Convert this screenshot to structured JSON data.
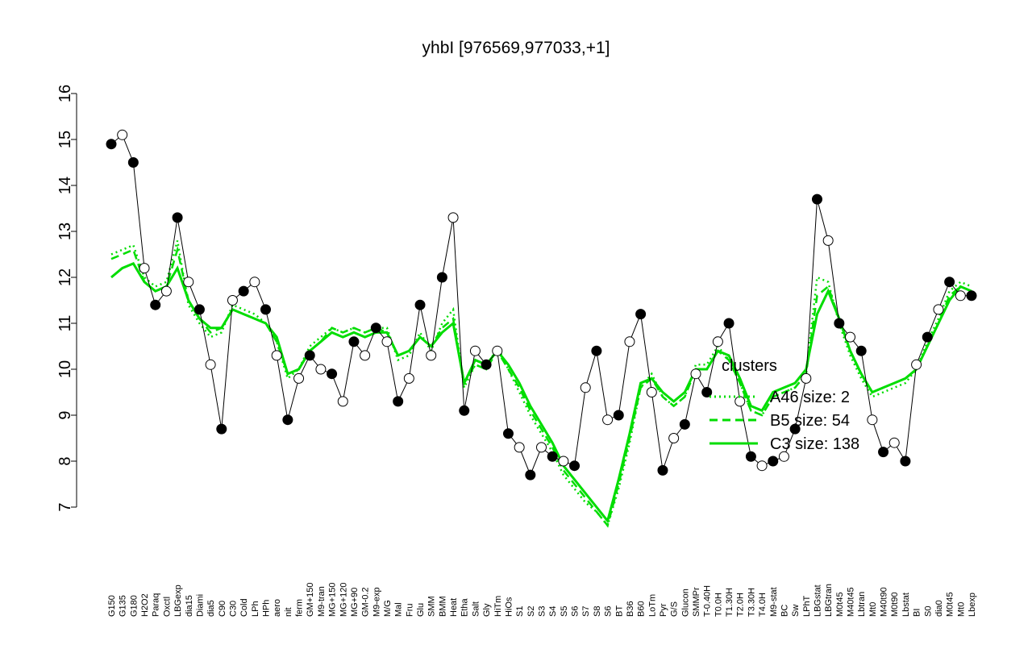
{
  "chart_data": {
    "type": "line",
    "title": "yhbI [976569,977033,+1]",
    "categories": [
      "G150",
      "G135",
      "G180",
      "H2O2",
      "Paraq",
      "Oxctl",
      "LBGexp",
      "dia15",
      "Diami",
      "dia5",
      "C90",
      "C30",
      "Cold",
      "LPh",
      "HPh",
      "aero",
      "nit",
      "ferm",
      "GM+150",
      "M9-tran",
      "MG+150",
      "MG+120",
      "MG+90",
      "GM-0.2",
      "M9-exp",
      "M/G",
      "Mal",
      "Fru",
      "Glu",
      "SMM",
      "BMM",
      "Heat",
      "Etha",
      "Salt",
      "Gly",
      "HiTm",
      "HiOs",
      "S1",
      "S2",
      "S3",
      "S4",
      "S5",
      "S6",
      "S7",
      "S8",
      "S6",
      "BT",
      "B36",
      "B60",
      "LoTm",
      "Pyr",
      "G/S",
      "Glucon",
      "SMMPr",
      "T-0.40H",
      "T0.0H",
      "T1.30H",
      "T2.0H",
      "T3.30H",
      "T4.0H",
      "M9-stat",
      "BC",
      "Sw",
      "LPhT",
      "LBGstat",
      "LBGtran",
      "M0t45",
      "M40t45",
      "Lbtran",
      "Mt0",
      "M40t90",
      "M0t90",
      "Lbstat",
      "BI",
      "S0",
      "dia0",
      "M0t45",
      "Mt0",
      "Lbexp"
    ],
    "series": [
      {
        "name": "yhbI",
        "color": "#000000",
        "style": "points",
        "values": [
          14.9,
          15.1,
          14.5,
          12.2,
          11.4,
          11.7,
          13.3,
          11.9,
          11.3,
          10.1,
          8.7,
          11.5,
          11.7,
          11.9,
          11.3,
          10.3,
          8.9,
          9.8,
          10.3,
          10.0,
          9.9,
          9.3,
          10.6,
          10.3,
          10.9,
          10.6,
          9.3,
          9.8,
          11.4,
          10.3,
          12.0,
          13.3,
          9.1,
          10.4,
          10.1,
          10.4,
          8.6,
          8.3,
          7.7,
          8.3,
          8.1,
          8.0,
          7.9,
          9.6,
          10.4,
          8.9,
          9.0,
          10.6,
          11.2,
          9.5,
          7.8,
          8.5,
          8.8,
          9.9,
          9.5,
          10.6,
          11.0,
          9.3,
          8.1,
          7.9,
          8.0,
          8.1,
          8.7,
          9.8,
          13.7,
          12.8,
          11.0,
          10.7,
          10.4,
          8.9,
          8.2,
          8.4,
          8.0,
          10.1,
          10.7,
          11.3,
          11.9,
          11.6,
          11.6
        ]
      },
      {
        "name": "A46 size: 2",
        "color": "#00dd00",
        "style": "dotted",
        "values": [
          12.5,
          12.6,
          12.7,
          12.0,
          11.8,
          11.9,
          12.8,
          11.4,
          11.0,
          10.7,
          10.8,
          11.4,
          11.3,
          11.2,
          11.0,
          10.6,
          9.8,
          10.0,
          10.5,
          10.7,
          10.9,
          10.8,
          10.9,
          10.8,
          10.9,
          10.9,
          10.2,
          10.3,
          10.8,
          10.4,
          11.0,
          11.3,
          9.6,
          10.1,
          10.0,
          10.5,
          10.0,
          9.5,
          9.0,
          8.6,
          8.2,
          7.7,
          7.4,
          7.1,
          6.9,
          6.6,
          7.4,
          8.4,
          9.6,
          9.9,
          9.4,
          9.2,
          9.4,
          10.1,
          10.1,
          10.5,
          10.2,
          9.7,
          9.1,
          9.0,
          9.4,
          9.5,
          9.6,
          9.9,
          12.0,
          11.9,
          11.0,
          10.3,
          9.8,
          9.4,
          9.5,
          9.6,
          9.7,
          10.0,
          10.6,
          11.1,
          11.7,
          11.9,
          11.8
        ]
      },
      {
        "name": "B5 size: 54",
        "color": "#00dd00",
        "style": "dashed",
        "values": [
          12.4,
          12.5,
          12.6,
          11.9,
          11.7,
          11.8,
          12.6,
          11.5,
          11.1,
          10.8,
          10.9,
          11.3,
          11.2,
          11.1,
          11.0,
          10.6,
          9.9,
          10.0,
          10.4,
          10.6,
          10.9,
          10.8,
          10.9,
          10.8,
          10.9,
          10.8,
          10.3,
          10.4,
          10.7,
          10.5,
          10.9,
          11.1,
          9.7,
          10.1,
          10.0,
          10.4,
          10.0,
          9.6,
          9.1,
          8.7,
          8.3,
          7.8,
          7.5,
          7.2,
          6.9,
          6.6,
          7.5,
          8.5,
          9.6,
          9.8,
          9.4,
          9.2,
          9.4,
          10.0,
          10.0,
          10.4,
          10.2,
          9.7,
          9.1,
          9.0,
          9.4,
          9.5,
          9.6,
          9.9,
          11.6,
          11.8,
          11.1,
          10.4,
          9.9,
          9.5,
          9.6,
          9.7,
          9.8,
          10.0,
          10.5,
          11.0,
          11.6,
          11.8,
          11.7
        ]
      },
      {
        "name": "C3 size: 138",
        "color": "#00dd00",
        "style": "solid",
        "values": [
          12.0,
          12.2,
          12.3,
          11.9,
          11.7,
          11.8,
          12.2,
          11.5,
          11.1,
          10.9,
          10.9,
          11.3,
          11.2,
          11.1,
          11.0,
          10.7,
          9.9,
          10.0,
          10.4,
          10.6,
          10.8,
          10.7,
          10.8,
          10.7,
          10.8,
          10.8,
          10.3,
          10.4,
          10.7,
          10.5,
          10.8,
          11.0,
          9.7,
          10.2,
          10.1,
          10.4,
          10.1,
          9.7,
          9.2,
          8.8,
          8.4,
          7.9,
          7.6,
          7.3,
          7.0,
          6.7,
          7.6,
          8.6,
          9.7,
          9.8,
          9.5,
          9.3,
          9.5,
          10.0,
          10.0,
          10.4,
          10.3,
          9.8,
          9.2,
          9.1,
          9.5,
          9.6,
          9.7,
          10.0,
          11.2,
          11.7,
          11.1,
          10.4,
          9.9,
          9.5,
          9.6,
          9.7,
          9.8,
          10.0,
          10.5,
          11.0,
          11.5,
          11.8,
          11.7
        ]
      }
    ],
    "legend_title": "clusters",
    "ylim": [
      7,
      16
    ],
    "yticks": [
      7,
      8,
      9,
      10,
      11,
      12,
      13,
      14,
      15,
      16
    ]
  }
}
